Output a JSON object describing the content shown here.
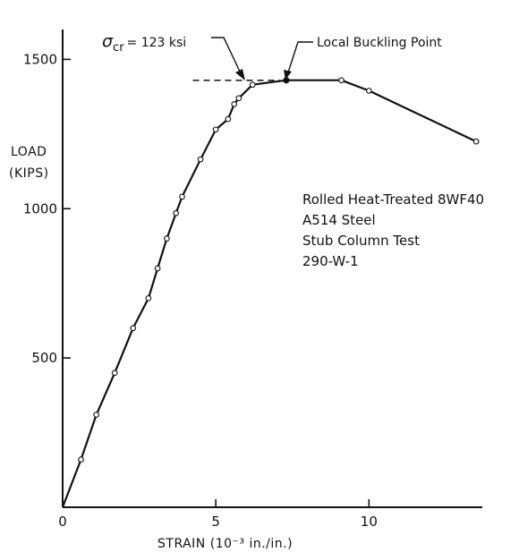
{
  "chart_data": {
    "type": "line",
    "title": "",
    "xlabel": "STRAIN (10⁻³ in./in.)",
    "ylabel_line1": "LOAD",
    "ylabel_line2": "(KIPS)",
    "xlim": [
      0,
      13.7
    ],
    "ylim": [
      0,
      1600
    ],
    "xticks": [
      0,
      5,
      10
    ],
    "yticks": [
      500,
      1000,
      1500
    ],
    "grid": false,
    "series": [
      {
        "points": [
          {
            "x": 0.0,
            "y": 0
          },
          {
            "x": 0.6,
            "y": 160
          },
          {
            "x": 1.1,
            "y": 310
          },
          {
            "x": 1.7,
            "y": 450
          },
          {
            "x": 2.3,
            "y": 600
          },
          {
            "x": 2.8,
            "y": 700
          },
          {
            "x": 3.1,
            "y": 800
          },
          {
            "x": 3.4,
            "y": 900
          },
          {
            "x": 3.7,
            "y": 985
          },
          {
            "x": 3.9,
            "y": 1040
          },
          {
            "x": 4.5,
            "y": 1165
          },
          {
            "x": 5.0,
            "y": 1265
          },
          {
            "x": 5.4,
            "y": 1300
          },
          {
            "x": 5.6,
            "y": 1350
          },
          {
            "x": 5.75,
            "y": 1370
          },
          {
            "x": 6.2,
            "y": 1415
          },
          {
            "x": 7.3,
            "y": 1430
          },
          {
            "x": 9.1,
            "y": 1430
          },
          {
            "x": 10.0,
            "y": 1395
          },
          {
            "x": 13.5,
            "y": 1225
          }
        ],
        "markers": [
          {
            "x": 0.6,
            "y": 160
          },
          {
            "x": 1.1,
            "y": 310
          },
          {
            "x": 1.7,
            "y": 450
          },
          {
            "x": 2.3,
            "y": 600
          },
          {
            "x": 2.8,
            "y": 700
          },
          {
            "x": 3.1,
            "y": 800
          },
          {
            "x": 3.4,
            "y": 900
          },
          {
            "x": 3.7,
            "y": 985
          },
          {
            "x": 3.9,
            "y": 1040
          },
          {
            "x": 4.5,
            "y": 1165
          },
          {
            "x": 5.0,
            "y": 1265
          },
          {
            "x": 5.4,
            "y": 1300
          },
          {
            "x": 5.6,
            "y": 1350
          },
          {
            "x": 5.75,
            "y": 1370
          },
          {
            "x": 6.2,
            "y": 1415
          },
          {
            "x": 9.1,
            "y": 1430
          },
          {
            "x": 10.0,
            "y": 1395
          },
          {
            "x": 13.5,
            "y": 1225
          }
        ],
        "local_buckling_point": {
          "x": 7.3,
          "y": 1430
        }
      }
    ],
    "reference_line": {
      "x1": 4.25,
      "x2": 7.1,
      "y": 1430,
      "style": "dashed"
    },
    "annotations": {
      "sigma_symbol": "σ",
      "sigma_subscript": "cr",
      "sigma_value": "= 123 ksi",
      "local_buckling": "Local Buckling Point"
    },
    "note_lines": [
      "Rolled Heat-Treated 8WF40",
      "A514 Steel",
      "Stub Column Test",
      "290-W-1"
    ]
  }
}
